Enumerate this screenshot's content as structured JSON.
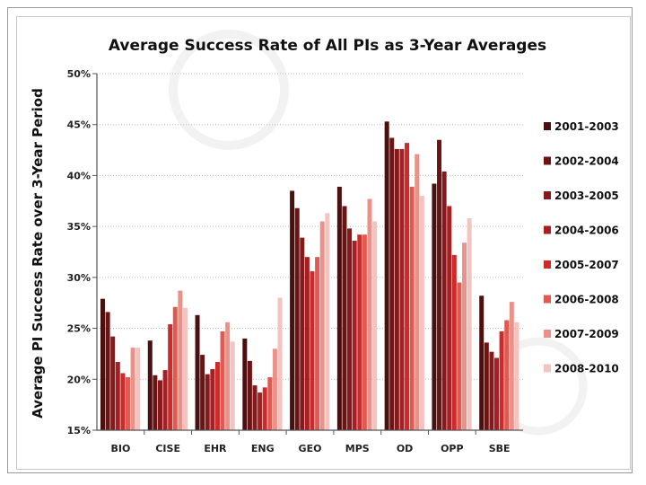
{
  "chart_data": {
    "type": "bar",
    "title": "Average Success Rate of All PIs as 3-Year Averages",
    "xlabel": "",
    "ylabel": "Average PI Success Rate over 3-Year Period",
    "ylim": [
      15,
      50
    ],
    "yticks": [
      15,
      20,
      25,
      30,
      35,
      40,
      45,
      50
    ],
    "ytick_labels": [
      "15%",
      "20%",
      "25%",
      "30%",
      "35%",
      "40%",
      "45%",
      "50%"
    ],
    "grid": "horizontal",
    "legend_position": "right",
    "categories": [
      "BIO",
      "CISE",
      "EHR",
      "ENG",
      "GEO",
      "MPS",
      "OD",
      "OPP",
      "SBE"
    ],
    "series": [
      {
        "name": "2001-2003",
        "color": "#4a1010",
        "values": [
          27.9,
          23.8,
          26.3,
          24.0,
          38.5,
          38.9,
          45.3,
          39.2,
          28.2
        ]
      },
      {
        "name": "2002-2004",
        "color": "#6b1414",
        "values": [
          26.6,
          20.4,
          22.4,
          21.8,
          36.8,
          37.0,
          43.7,
          43.5,
          23.6
        ]
      },
      {
        "name": "2003-2005",
        "color": "#85191b",
        "values": [
          24.2,
          19.9,
          20.5,
          19.4,
          33.9,
          34.8,
          42.6,
          40.4,
          22.7
        ]
      },
      {
        "name": "2004-2006",
        "color": "#a61f22",
        "values": [
          21.7,
          20.9,
          21.0,
          18.7,
          32.0,
          33.6,
          42.6,
          37.0,
          22.1
        ]
      },
      {
        "name": "2005-2007",
        "color": "#cf2a2a",
        "values": [
          20.6,
          25.4,
          21.7,
          19.2,
          30.6,
          34.2,
          43.2,
          32.2,
          24.7
        ]
      },
      {
        "name": "2006-2008",
        "color": "#e05a52",
        "values": [
          20.2,
          27.1,
          24.7,
          20.2,
          32.0,
          34.2,
          38.9,
          29.5,
          25.8
        ]
      },
      {
        "name": "2007-2009",
        "color": "#ea918a",
        "values": [
          23.1,
          28.7,
          25.6,
          23.0,
          35.5,
          37.7,
          42.1,
          33.4,
          27.6
        ]
      },
      {
        "name": "2008-2010",
        "color": "#f3c3bf",
        "values": [
          23.1,
          27.0,
          23.7,
          28.0,
          36.3,
          35.5,
          38.0,
          35.8,
          25.6
        ]
      }
    ]
  }
}
